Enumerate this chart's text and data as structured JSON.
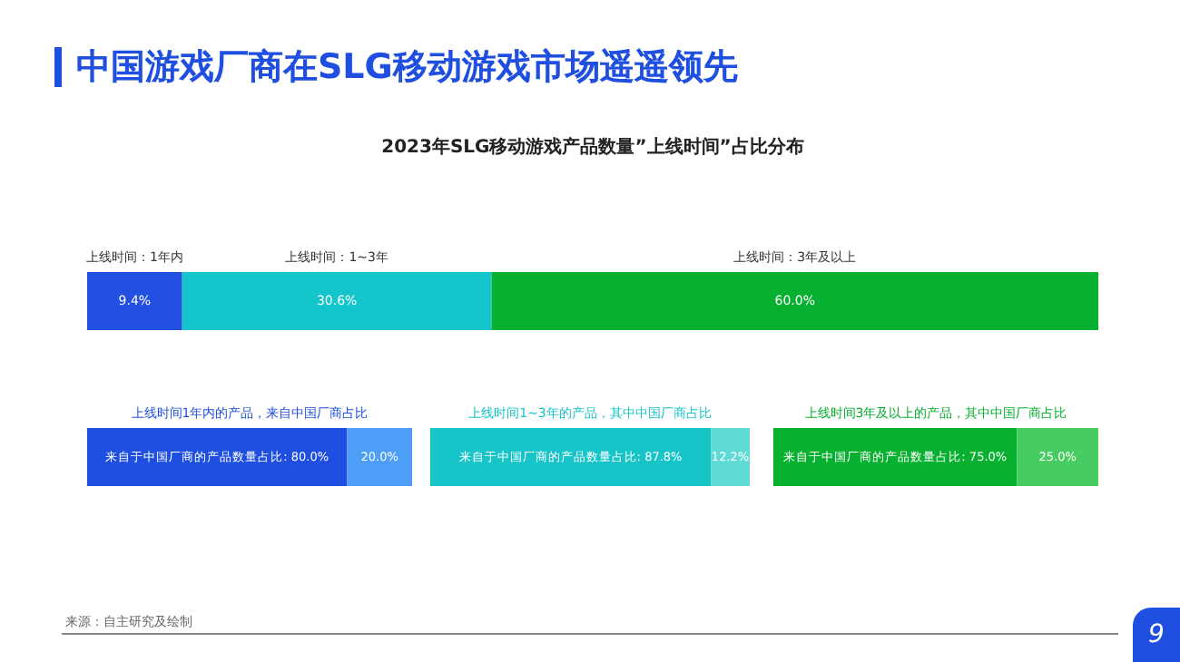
{
  "chart_data": [
    {
      "type": "bar",
      "orientation": "horizontal",
      "stacked": true,
      "title": "中国游戏厂商在SLG移动游戏市场遥遥领先",
      "subtitle": "2023年SLG移动游戏产品数量”上线时间”占比分布",
      "categories": [
        null
      ],
      "xlim": [
        0,
        100
      ],
      "tick_labels": false,
      "legend": false,
      "series": [
        {
          "name": "上线时间：1年内",
          "color": "#2350e0",
          "values": [
            9.4
          ],
          "value_labels": [
            "9.4%"
          ]
        },
        {
          "name": "上线时间：1~3年",
          "color": "#13c6cc",
          "values": [
            30.6
          ],
          "value_labels": [
            "30.6%"
          ]
        },
        {
          "name": "上线时间：3年及以上",
          "color": "#07b031",
          "values": [
            60.0
          ],
          "value_labels": [
            "60.0%"
          ]
        }
      ],
      "annotations": [
        "来源：自主研究及绘制",
        "9"
      ]
    },
    {
      "type": "bar",
      "orientation": "horizontal",
      "stacked": true,
      "title": "上线时间1年内的产品，来自中国厂商占比",
      "categories": [
        null
      ],
      "xlim": [
        0,
        100
      ],
      "tick_labels": false,
      "legend": false,
      "series": [
        {
          "color": "#1f4fe0",
          "values": [
            80.0
          ],
          "value_labels": [
            "来自于中国厂商的产品数量占比: 80.0%"
          ]
        },
        {
          "color": "#4d9ef7",
          "values": [
            20.0
          ],
          "value_labels": [
            "20.0%"
          ]
        }
      ]
    },
    {
      "type": "bar",
      "orientation": "horizontal",
      "stacked": true,
      "title": "上线时间1~3年的产品，其中中国厂商占比",
      "categories": [
        null
      ],
      "xlim": [
        0,
        100
      ],
      "tick_labels": false,
      "legend": false,
      "series": [
        {
          "color": "#17c4c8",
          "values": [
            87.8
          ],
          "value_labels": [
            "来自于中国厂商的产品数量占比: 87.8%"
          ]
        },
        {
          "color": "#5fdad5",
          "values": [
            12.2
          ],
          "value_labels": [
            "12.2%"
          ]
        }
      ]
    },
    {
      "type": "bar",
      "orientation": "horizontal",
      "stacked": true,
      "title": "上线时间3年及以上的产品，其中中国厂商占比",
      "categories": [
        null
      ],
      "xlim": [
        0,
        100
      ],
      "tick_labels": false,
      "legend": false,
      "series": [
        {
          "color": "#08b02f",
          "values": [
            75.0
          ],
          "value_labels": [
            "来自于中国厂商的产品数量占比: 75.0%"
          ]
        },
        {
          "color": "#47cc62",
          "values": [
            25.0
          ],
          "value_labels": [
            "25.0%"
          ]
        }
      ]
    }
  ]
}
